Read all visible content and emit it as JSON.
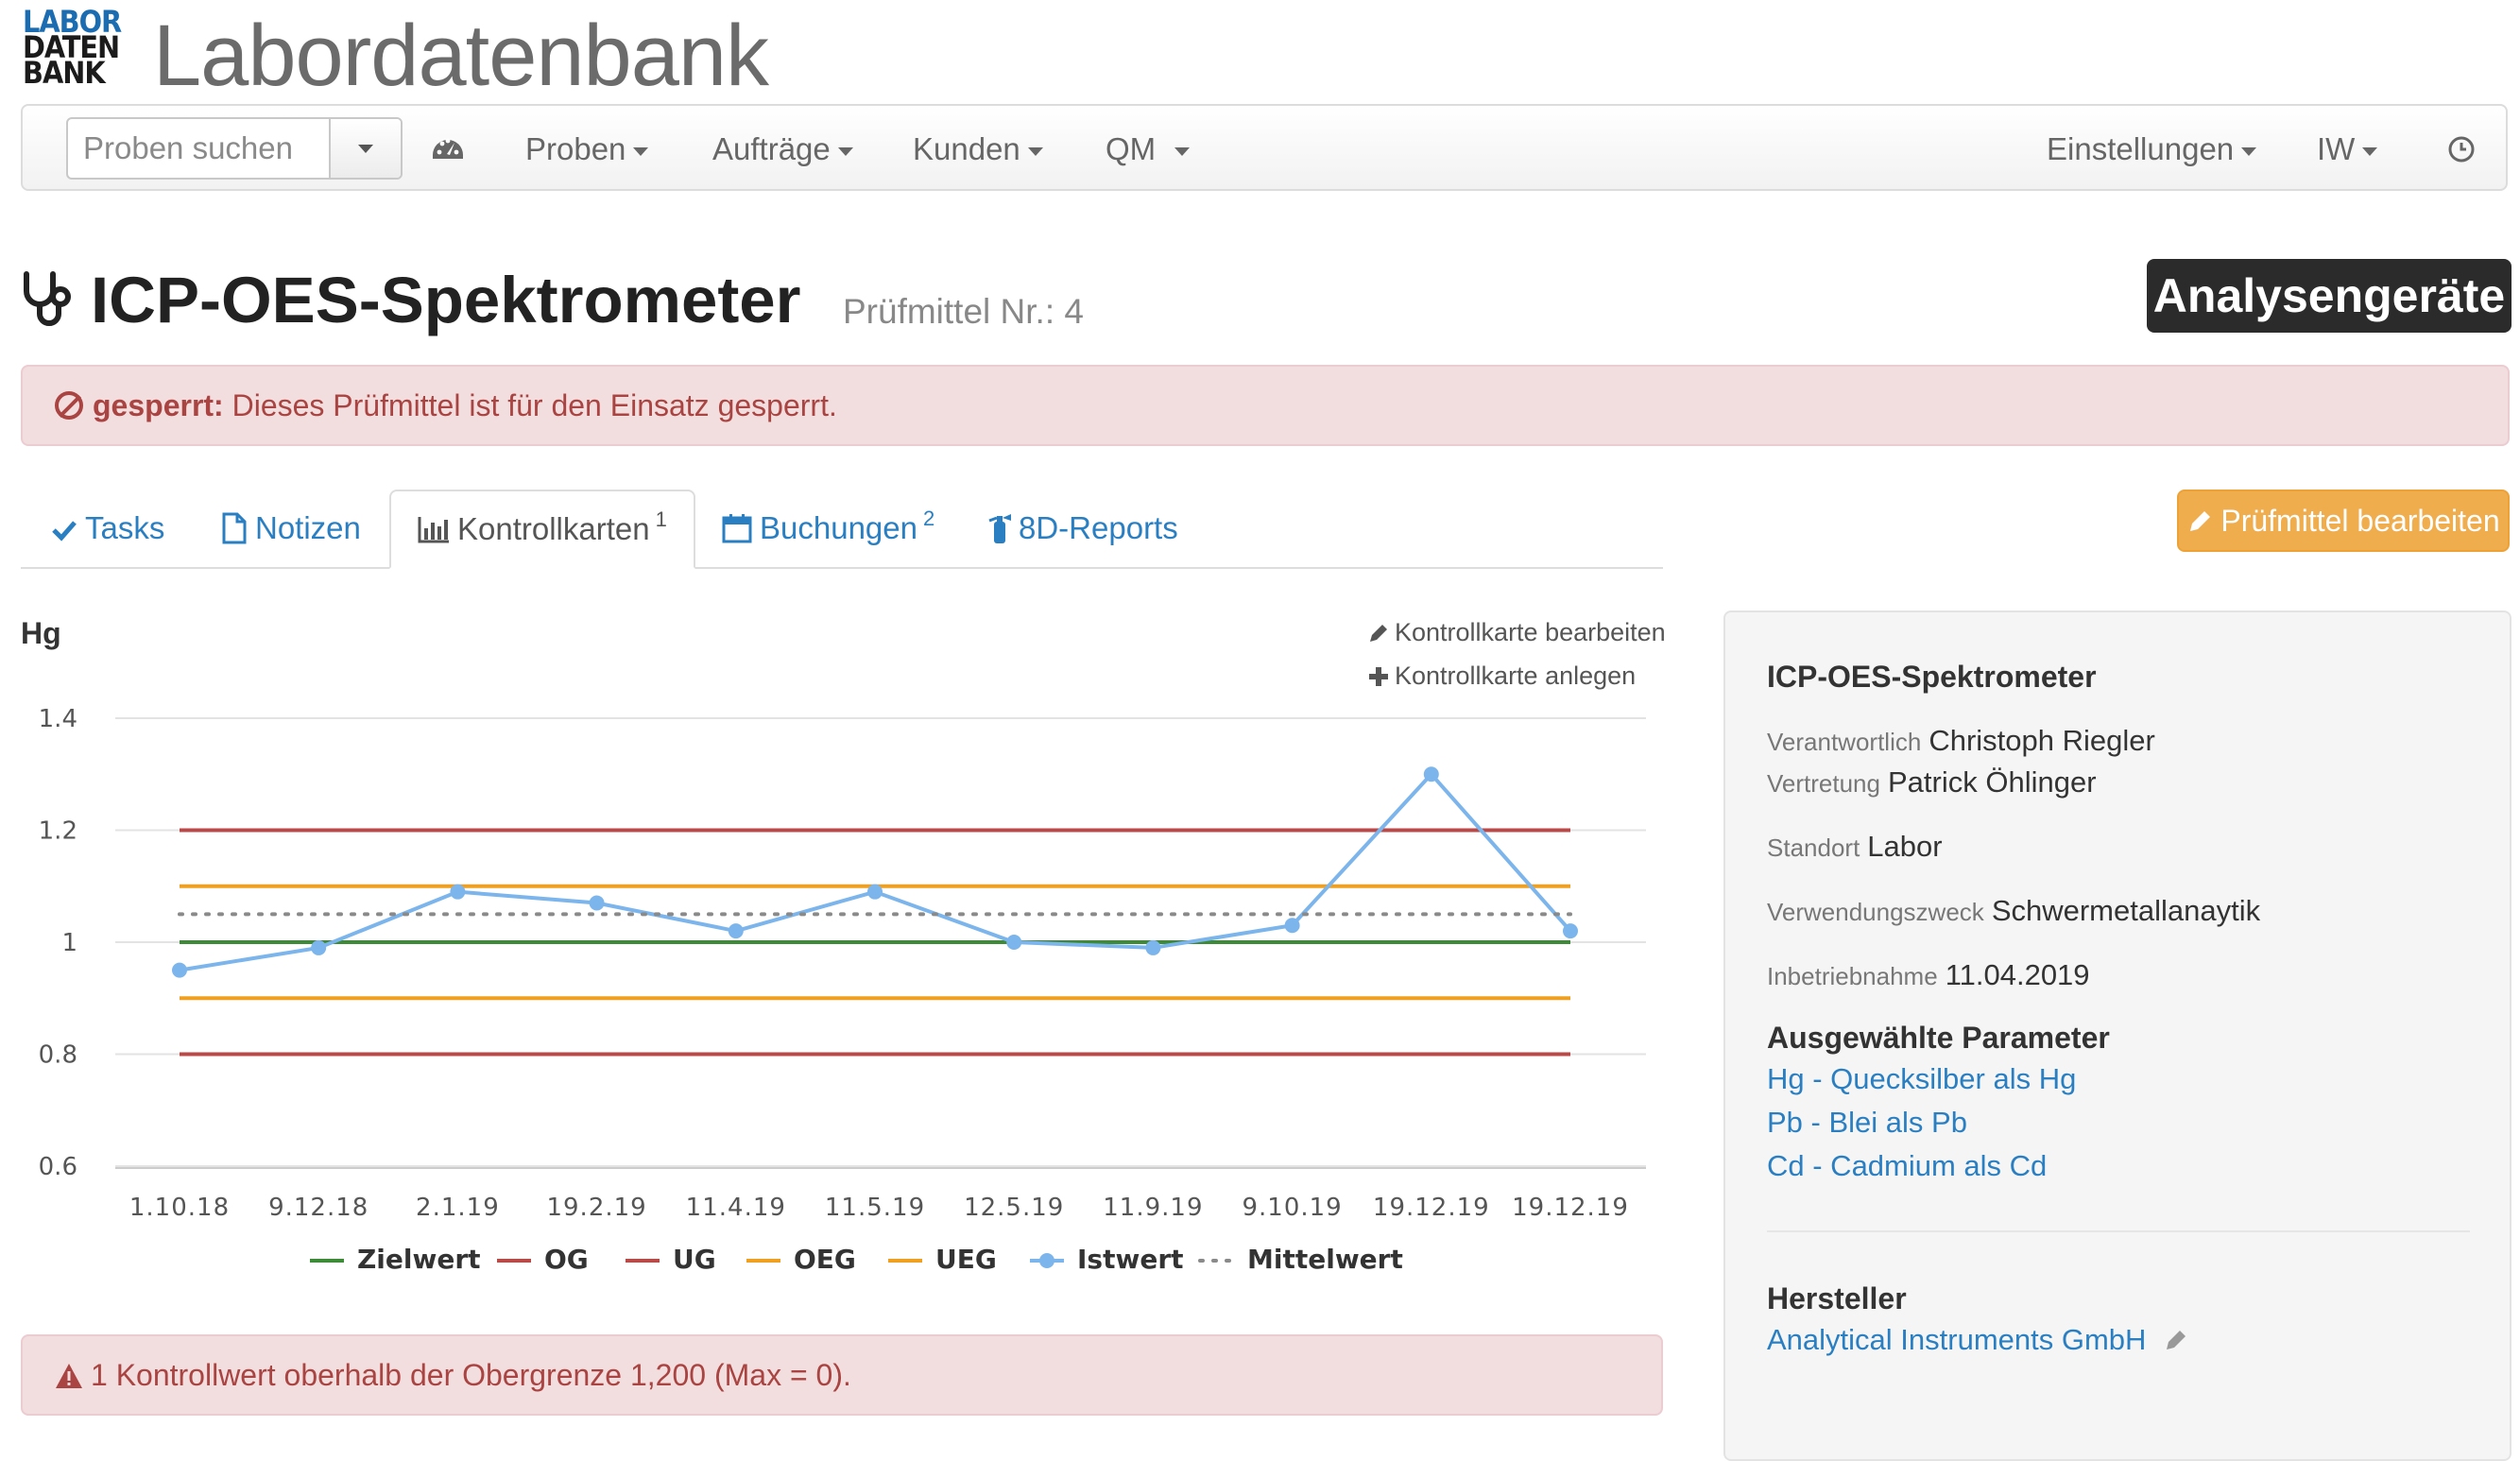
{
  "brand": {
    "logo_lines": [
      "LABOR",
      "DATEN",
      "BANK"
    ],
    "app_title": "Labordatenbank"
  },
  "navbar": {
    "search_placeholder": "Proben suchen",
    "items": [
      {
        "label": "Proben",
        "icon": "caret-down-icon"
      },
      {
        "label": "Aufträge",
        "icon": "caret-down-icon"
      },
      {
        "label": "Kunden",
        "icon": "caret-down-icon"
      },
      {
        "label": "QM",
        "icon": "caret-down-icon"
      }
    ],
    "dashboard_icon": "dashboard-gauge-icon",
    "settings_label": "Einstellungen",
    "user_label": "IW",
    "clock_icon": "clock-icon"
  },
  "page": {
    "title": "ICP-OES-Spektrometer",
    "subtitle": "Prüfmittel Nr.: 4",
    "title_icon": "stethoscope-icon",
    "category_badge": "Analysengeräte"
  },
  "alert_top": {
    "label": "gesperrt:",
    "text": "Dieses Prüfmittel ist für den Einsatz gesperrt."
  },
  "tabs": [
    {
      "label": "Tasks",
      "icon": "check-icon",
      "count": ""
    },
    {
      "label": "Notizen",
      "icon": "file-icon",
      "count": ""
    },
    {
      "label": "Kontrollkarten",
      "icon": "bar-chart-icon",
      "count": "1",
      "active": true
    },
    {
      "label": "Buchungen",
      "icon": "calendar-icon",
      "count": "2"
    },
    {
      "label": "8D-Reports",
      "icon": "fire-extinguisher-icon",
      "count": ""
    }
  ],
  "edit_button": {
    "label": "Prüfmittel bearbeiten",
    "icon": "pencil-icon"
  },
  "chart_actions": {
    "edit": "Kontrollkarte bearbeiten",
    "create": "Kontrollkarte anlegen"
  },
  "chart_data": {
    "type": "line",
    "title": "Hg",
    "xlabel": "",
    "ylabel": "",
    "ylim": [
      0.6,
      1.4
    ],
    "yticks": [
      "0.6",
      "0.8",
      "1",
      "1.2",
      "1.4"
    ],
    "categories": [
      "1.10.18",
      "9.12.18",
      "2.1.19",
      "19.2.19",
      "11.4.19",
      "11.5.19",
      "12.5.19",
      "11.9.19",
      "9.10.19",
      "19.12.19",
      "19.12.19"
    ],
    "grid": true,
    "legend_position": "bottom",
    "series": [
      {
        "name": "Zielwert",
        "color": "#3d8b37",
        "style": "solid",
        "values": [
          1,
          1,
          1,
          1,
          1,
          1,
          1,
          1,
          1,
          1,
          1
        ]
      },
      {
        "name": "OG",
        "color": "#b94a48",
        "style": "solid",
        "values": [
          1.2,
          1.2,
          1.2,
          1.2,
          1.2,
          1.2,
          1.2,
          1.2,
          1.2,
          1.2,
          1.2
        ]
      },
      {
        "name": "UG",
        "color": "#b94a48",
        "style": "solid",
        "values": [
          0.8,
          0.8,
          0.8,
          0.8,
          0.8,
          0.8,
          0.8,
          0.8,
          0.8,
          0.8,
          0.8
        ]
      },
      {
        "name": "OEG",
        "color": "#f0a020",
        "style": "solid",
        "values": [
          1.1,
          1.1,
          1.1,
          1.1,
          1.1,
          1.1,
          1.1,
          1.1,
          1.1,
          1.1,
          1.1
        ]
      },
      {
        "name": "UEG",
        "color": "#f0a020",
        "style": "solid",
        "values": [
          0.9,
          0.9,
          0.9,
          0.9,
          0.9,
          0.9,
          0.9,
          0.9,
          0.9,
          0.9,
          0.9
        ]
      },
      {
        "name": "Istwert",
        "color": "#7cb5ec",
        "style": "marker-line",
        "values": [
          0.95,
          0.99,
          1.09,
          1.07,
          1.02,
          1.09,
          1.0,
          0.99,
          1.03,
          1.3,
          1.02
        ]
      },
      {
        "name": "Mittelwert",
        "color": "#8a8a8a",
        "style": "dotted",
        "values": [
          1.05,
          1.05,
          1.05,
          1.05,
          1.05,
          1.05,
          1.05,
          1.05,
          1.05,
          1.05,
          1.05
        ]
      }
    ]
  },
  "alert_bottom": {
    "icon": "warning-icon",
    "text": "1 Kontrollwert oberhalb der Obergrenze 1,200 (Max = 0)."
  },
  "panel": {
    "title": "ICP-OES-Spektrometer",
    "rows": [
      {
        "key": "Verantwortlich",
        "value": "Christoph Riegler"
      },
      {
        "key": "Vertretung",
        "value": "Patrick Öhlinger"
      },
      {
        "key": "Standort",
        "value": "Labor"
      },
      {
        "key": "Verwendungszweck",
        "value": "Schwermetallanaytik"
      },
      {
        "key": "Inbetriebnahme",
        "value": "11.04.2019"
      }
    ],
    "params_title": "Ausgewählte Parameter",
    "params": [
      "Hg - Quecksilber als Hg",
      "Pb - Blei als Pb",
      "Cd - Cadmium als Cd"
    ],
    "manufacturer_title": "Hersteller",
    "manufacturer": "Analytical Instruments GmbH",
    "manufacturer_icon": "pencil-icon"
  }
}
